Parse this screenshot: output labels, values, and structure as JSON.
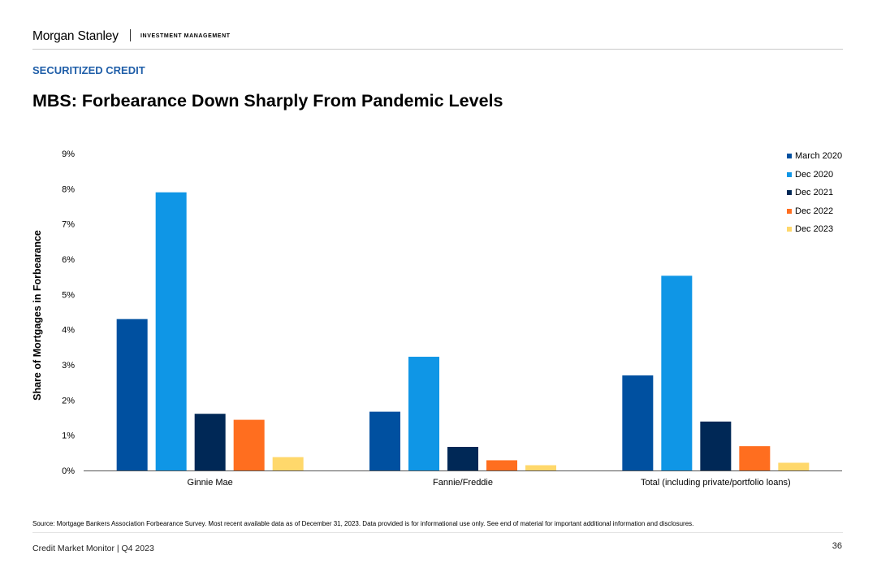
{
  "header": {
    "logo_text": "Morgan Stanley",
    "division": "INVESTMENT MANAGEMENT"
  },
  "section_label": "SECURITIZED CREDIT",
  "page_title": "MBS: Forbearance Down Sharply From Pandemic Levels",
  "chart_data": {
    "type": "bar",
    "title": "",
    "xlabel": "",
    "ylabel": "Share of Mortgages in Forbearance",
    "categories": [
      "Ginnie Mae",
      "Fannie/Freddie",
      "Total (including private/portfolio loans)"
    ],
    "series": [
      {
        "name": "March 2020",
        "color": "#0050a0",
        "values": [
          4.3,
          1.67,
          2.7
        ]
      },
      {
        "name": "Dec 2020",
        "color": "#0f96e6",
        "values": [
          7.9,
          3.23,
          5.53
        ]
      },
      {
        "name": "Dec 2021",
        "color": "#002856",
        "values": [
          1.61,
          0.67,
          1.39
        ]
      },
      {
        "name": "Dec 2022",
        "color": "#ff6e1f",
        "values": [
          1.44,
          0.29,
          0.69
        ]
      },
      {
        "name": "Dec 2023",
        "color": "#ffd86b",
        "values": [
          0.38,
          0.15,
          0.22
        ]
      }
    ],
    "ylim": [
      0,
      9
    ],
    "yticks": [
      "0%",
      "1%",
      "2%",
      "3%",
      "4%",
      "5%",
      "6%",
      "7%",
      "8%",
      "9%"
    ],
    "grid": false,
    "legend": "top-right"
  },
  "source_note": "Source: Mortgage Bankers Association Forbearance Survey. Most recent available data as of December 31, 2023. Data provided is for informational use only. See end of material for important additional information and disclosures.",
  "footer": {
    "left": "Credit Market Monitor | Q4 2023",
    "page_number": "36"
  }
}
